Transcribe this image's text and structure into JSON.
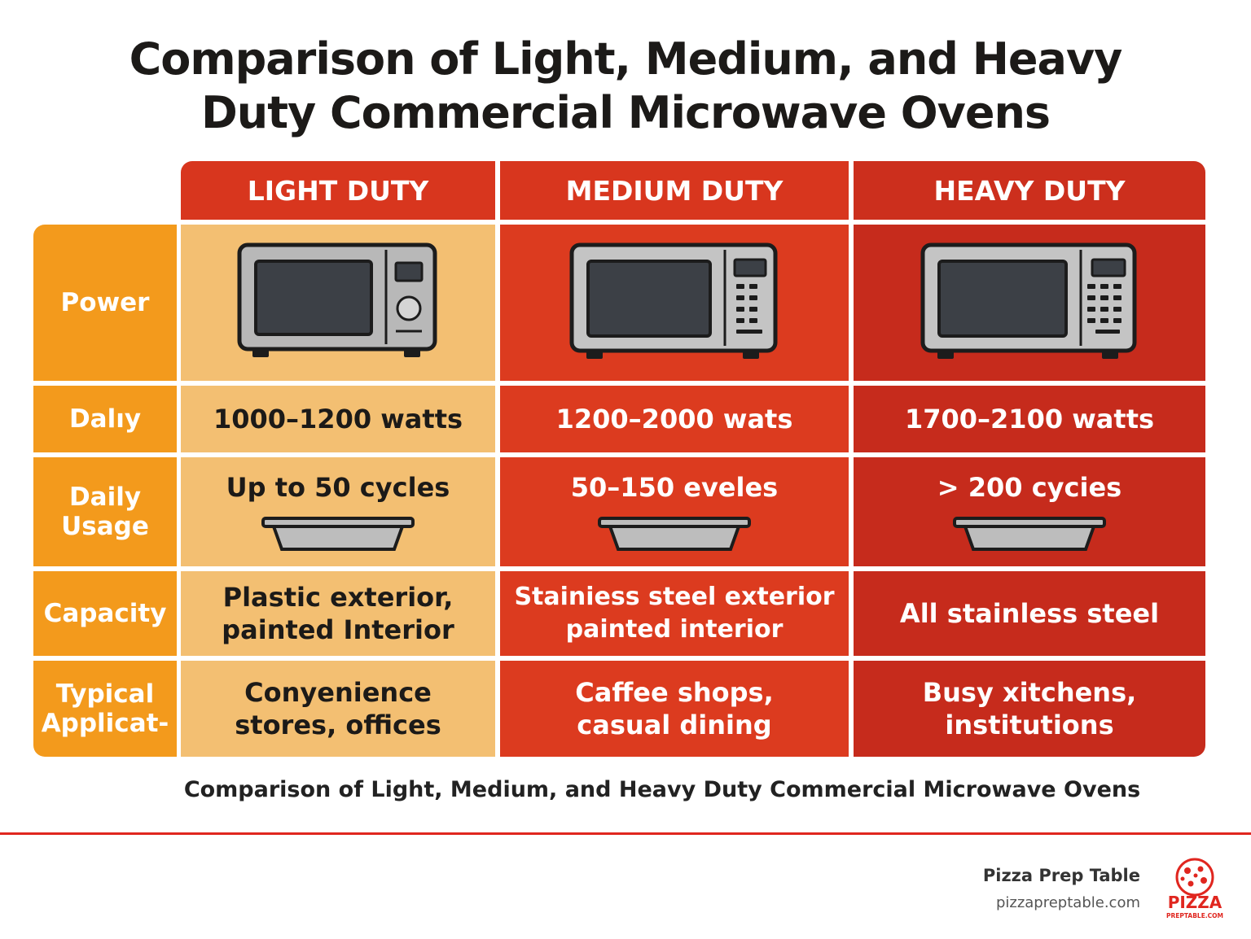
{
  "title": {
    "line1": "Comparison of Light, Medium, and Heavy",
    "line2": "Duty Commercial Microwave Ovens"
  },
  "columns": [
    "LIGHT DUTY",
    "MEDIUM DUTY",
    "HEAVY DUTY"
  ],
  "rows": {
    "power": {
      "label": "Power"
    },
    "daily": {
      "label": "Dalıy",
      "values": [
        "1000–1200 watts",
        "1200–2000 wats",
        "1700–2100 watts"
      ]
    },
    "usage": {
      "label_1": "Daily",
      "label_2": "Usage",
      "values": [
        "Up to 50 cycles",
        "50–150 eveles",
        "> 200 cycies"
      ]
    },
    "capacity": {
      "label": "Capacity",
      "light_1": "Plastic exterior,",
      "light_2": "painted Interior",
      "medium_1": "Stainiess steel exterior",
      "medium_2": "painted interior",
      "heavy_1": "All stainless steel"
    },
    "application": {
      "label_1": "Typical",
      "label_2": "Applicat-",
      "light_1": "Conyenience",
      "light_2": "stores, offices",
      "medium_1": "Caffee shops,",
      "medium_2": "casual dining",
      "heavy_1": "Busy xitchens,",
      "heavy_2": "institutions"
    }
  },
  "caption": "Comparison of Light, Medium, and Heavy Duty Commercial Microwave Ovens",
  "brand": {
    "name": "Pizza Prep Table",
    "url": "pizzapreptable.com",
    "logo_text": "PIZZA",
    "logo_subtext": "PREPTABLE.COM"
  },
  "colors": {
    "orange_header": "#f39a1c",
    "light_cell": "#f3bf72",
    "medium_cell": "#dc3b1f",
    "heavy_cell": "#c62b1c",
    "accent_rule": "#e0261f"
  },
  "icons": [
    "microwave-light-icon",
    "microwave-medium-icon",
    "microwave-heavy-icon",
    "tray-icon",
    "pizza-logo-icon"
  ]
}
